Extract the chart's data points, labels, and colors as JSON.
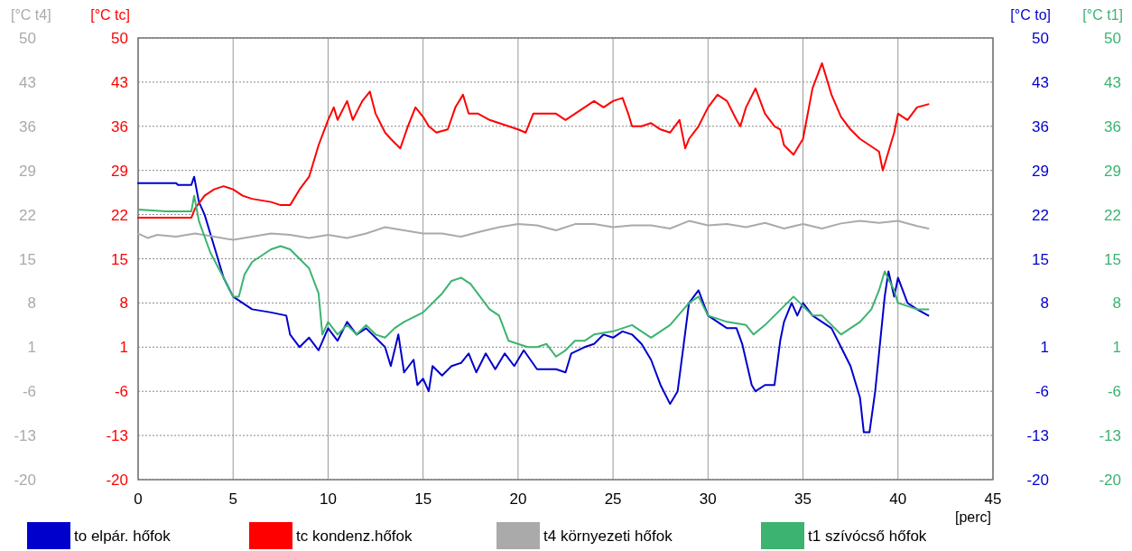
{
  "chart_data": {
    "type": "line",
    "xlabel": "[perc]",
    "ylabel": "[°C tc]",
    "y2label": "[°C to]",
    "y3label": "[°C t1]",
    "annotations": [
      "[°C t4]",
      "-20",
      "-13",
      "-6",
      "1",
      "8",
      "15",
      "22",
      "29",
      "36",
      "43",
      "50"
    ],
    "xlim": [
      0,
      45
    ],
    "xticks": [
      0,
      5,
      10,
      15,
      20,
      25,
      30,
      35,
      40,
      45
    ],
    "ylim": [
      -20,
      50
    ],
    "yticks": [
      -20,
      -13,
      -6,
      1,
      8,
      15,
      22,
      29,
      36,
      43,
      50
    ],
    "y2lim": [
      -20,
      50
    ],
    "y2ticks": [
      -20,
      -13,
      -6,
      1,
      8,
      15,
      22,
      29,
      36,
      43,
      50
    ],
    "y3lim": [
      -20,
      50
    ],
    "y3ticks": [
      -20,
      -13,
      -6,
      1,
      8,
      15,
      22,
      29,
      36,
      43,
      50
    ],
    "grid": true,
    "legend": "bottom",
    "marker": "none",
    "line_style": "solid",
    "series": [
      {
        "name": "to elpár. hőfok",
        "color": "#0000cc",
        "axis": "y2",
        "x": [
          0,
          2,
          2.1,
          2.8,
          2.95,
          3.2,
          3.5,
          3.8,
          4,
          4.5,
          5,
          5.5,
          6,
          7,
          7.8,
          8,
          8.5,
          9,
          9.5,
          10,
          10.5,
          11,
          11.5,
          12,
          12.5,
          13,
          13.3,
          13.7,
          14,
          14.5,
          14.7,
          15,
          15.3,
          15.5,
          16,
          16.5,
          17,
          17.4,
          17.8,
          18.3,
          18.8,
          19.3,
          19.8,
          20.3,
          21,
          22,
          22.5,
          22.8,
          23.5,
          24,
          24.5,
          25,
          25.5,
          26,
          26.5,
          27,
          27.5,
          28,
          28.4,
          28.7,
          29,
          29.5,
          30,
          30.5,
          31,
          31.5,
          31.8,
          32.3,
          32.5,
          33,
          33.5,
          33.8,
          34,
          34.4,
          34.7,
          35,
          35.5,
          36,
          36.5,
          37,
          37.5,
          38,
          38.2,
          38.5,
          38.8,
          39,
          39.3,
          39.5,
          39.8,
          40,
          40.5,
          41,
          41.6
        ],
        "values": [
          27,
          27,
          26.7,
          26.7,
          28,
          24,
          22,
          19,
          17,
          12,
          9,
          8,
          7,
          6.5,
          6,
          3,
          1,
          2.5,
          0.5,
          4,
          2,
          5,
          3,
          4,
          2.5,
          1,
          -2,
          3,
          -3,
          -1,
          -5,
          -4,
          -6,
          -2,
          -3.5,
          -2,
          -1.5,
          0,
          -3,
          0,
          -2.5,
          0,
          -2,
          0.5,
          -2.5,
          -2.5,
          -3,
          0,
          1,
          1.5,
          3,
          2.5,
          3.5,
          3,
          1.5,
          -1,
          -5,
          -8,
          -6,
          1,
          8,
          10,
          6,
          5,
          4,
          4,
          1.5,
          -5,
          -6,
          -5,
          -5,
          2,
          5,
          8,
          6,
          8,
          6,
          5,
          4,
          1,
          -2,
          -7,
          -12.5,
          -12.5,
          -6,
          0,
          9,
          13,
          9,
          12,
          8,
          7,
          6
        ]
      },
      {
        "name": "tc kondenz.hőfok",
        "color": "#ff0000",
        "axis": "y",
        "x": [
          0,
          2.8,
          3,
          3.5,
          4,
          4.5,
          5,
          5.5,
          6,
          7,
          7.5,
          8,
          8.5,
          9,
          9.5,
          10,
          10.3,
          10.5,
          11,
          11.3,
          11.8,
          12.2,
          12.5,
          13,
          13.3,
          13.8,
          14.2,
          14.6,
          15,
          15.3,
          15.7,
          16.3,
          16.7,
          17.1,
          17.4,
          17.9,
          18.5,
          19,
          19.5,
          20,
          20.4,
          20.8,
          22,
          22.5,
          23,
          23.5,
          24,
          24.5,
          25,
          25.5,
          25.8,
          26,
          26.5,
          27,
          27.5,
          28,
          28.5,
          28.8,
          29,
          29.5,
          30,
          30.5,
          31,
          31.5,
          31.7,
          32,
          32.5,
          33,
          33.5,
          33.8,
          34,
          34.5,
          35,
          35.5,
          36,
          36.5,
          37,
          37.5,
          38,
          38.5,
          39,
          39.2,
          39.5,
          39.8,
          40,
          40.5,
          41,
          41.6
        ],
        "values": [
          21.5,
          21.5,
          23,
          25,
          26,
          26.5,
          26,
          25,
          24.5,
          24,
          23.5,
          23.5,
          26,
          28,
          33,
          37,
          39,
          37,
          40,
          37,
          40,
          41.5,
          38,
          35,
          34,
          32.5,
          36,
          39,
          37.5,
          36,
          35,
          35.5,
          39,
          41,
          38,
          38,
          37,
          36.5,
          36,
          35.5,
          35,
          38,
          38,
          37,
          38,
          39,
          40,
          39,
          40,
          40.5,
          38,
          36,
          36,
          36.5,
          35.5,
          35,
          37,
          32.5,
          34,
          36,
          39,
          41,
          40,
          37,
          36,
          39,
          42,
          38,
          36,
          35.5,
          33,
          31.5,
          34,
          42,
          46,
          41,
          37.5,
          35.5,
          34,
          33,
          32,
          29,
          32,
          35,
          38,
          37,
          39,
          39.5
        ]
      },
      {
        "name": "t4 környezeti hőfok",
        "color": "#aaaaaa",
        "axis": "y",
        "x": [
          0,
          0.5,
          1,
          2,
          3,
          4,
          5,
          6,
          7,
          8,
          9,
          10,
          11,
          12,
          13,
          14,
          15,
          16,
          17,
          18,
          19,
          20,
          21,
          22,
          23,
          24,
          25,
          26,
          27,
          28,
          29,
          30,
          31,
          32,
          33,
          34,
          35,
          36,
          37,
          38,
          39,
          40,
          41,
          41.6
        ],
        "values": [
          19,
          18.3,
          18.8,
          18.5,
          19,
          18.5,
          18,
          18.5,
          19,
          18.8,
          18.3,
          18.8,
          18.3,
          19,
          20,
          19.5,
          19,
          19,
          18.5,
          19.3,
          20,
          20.5,
          20.3,
          19.5,
          20.5,
          20.5,
          20,
          20.3,
          20.3,
          19.8,
          21,
          20.3,
          20.5,
          20,
          20.7,
          19.8,
          20.5,
          19.8,
          20.6,
          21,
          20.7,
          21,
          20.2,
          19.8
        ]
      },
      {
        "name": "t1 szívócső hőfok",
        "color": "#3cb371",
        "axis": "y3",
        "x": [
          0,
          1.5,
          2.8,
          2.95,
          3.2,
          3.8,
          4.5,
          5,
          5.3,
          5.6,
          6,
          7,
          7.5,
          8,
          8.5,
          9,
          9.5,
          9.7,
          10,
          10.5,
          11,
          11.5,
          12,
          12.5,
          13,
          13.5,
          14,
          15,
          16,
          16.5,
          17,
          17.5,
          18,
          18.5,
          19,
          19.5,
          20,
          20.5,
          21,
          21.5,
          22,
          22.5,
          23,
          23.5,
          24,
          25,
          26,
          26.5,
          27,
          28,
          29,
          29.5,
          30,
          31,
          32,
          32.4,
          33,
          34,
          34.5,
          35,
          35.5,
          36,
          37,
          38,
          38.6,
          39,
          39.3,
          39.8,
          40,
          41,
          41.6
        ],
        "values": [
          22.8,
          22.5,
          22.5,
          25,
          21,
          16,
          12,
          9,
          9,
          12.5,
          14.5,
          16.5,
          17,
          16.5,
          15,
          13.5,
          9.5,
          3,
          5,
          3,
          4.5,
          3,
          4.5,
          3,
          2.5,
          4,
          5,
          6.5,
          9.5,
          11.5,
          12,
          11,
          9,
          7,
          6,
          2,
          1.5,
          1,
          1,
          1.5,
          -0.5,
          0.5,
          2,
          2,
          3,
          3.5,
          4.5,
          3.5,
          2.5,
          4.5,
          8,
          9,
          6,
          5,
          4.5,
          3,
          4.5,
          7.5,
          9,
          7.5,
          6,
          6,
          3,
          5,
          7,
          10,
          13,
          10,
          8,
          7,
          7
        ]
      }
    ]
  }
}
